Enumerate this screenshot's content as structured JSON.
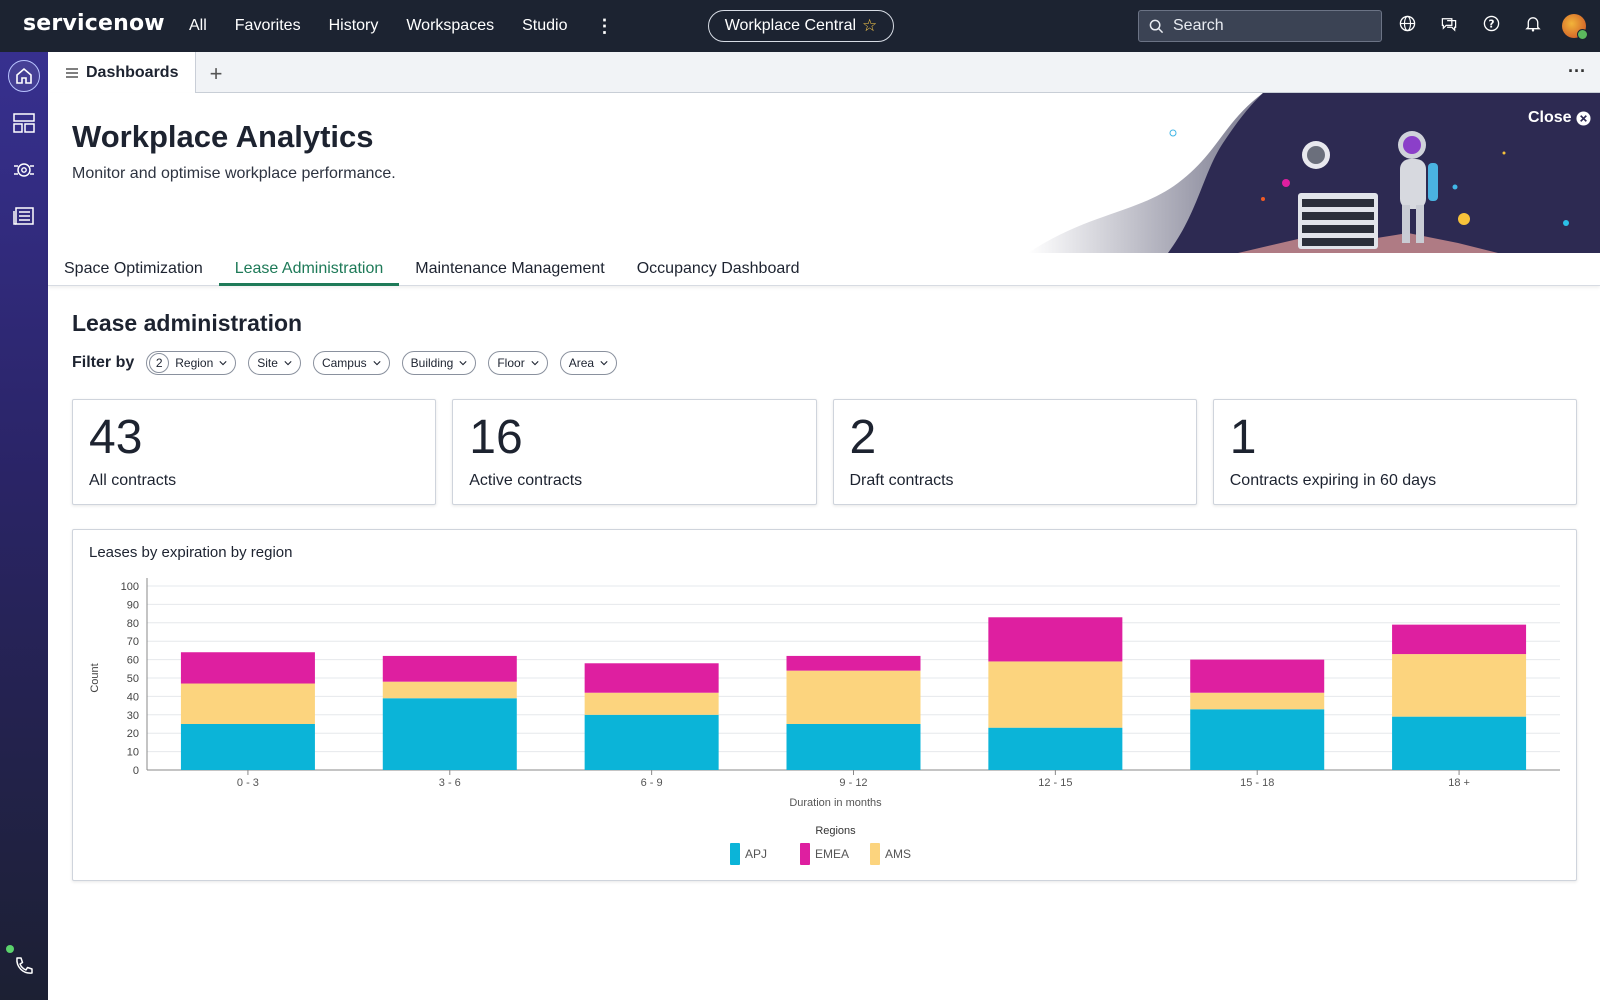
{
  "topbar": {
    "logo": "servicenow",
    "nav": [
      "All",
      "Favorites",
      "History",
      "Workspaces",
      "Studio"
    ],
    "workspace": "Workplace Central",
    "search_placeholder": "Search",
    "icons": [
      "globe-icon",
      "chat-icon",
      "help-icon",
      "bell-icon"
    ]
  },
  "rail": {
    "icons": [
      "home-icon",
      "dashboard-icon",
      "settings-group-icon",
      "list-icon",
      "phone-icon"
    ]
  },
  "tabstrip": {
    "active_tab": "Dashboards",
    "add": "+",
    "more": "···"
  },
  "hero": {
    "title": "Workplace Analytics",
    "subtitle": "Monitor and optimise workplace performance.",
    "close": "Close",
    "tabs": [
      "Space Optimization",
      "Lease Administration",
      "Maintenance Management",
      "Occupancy Dashboard"
    ],
    "selected_tab": "Lease Administration"
  },
  "section": {
    "title": "Lease administration",
    "filter_label": "Filter by",
    "filters": [
      {
        "label": "Region",
        "count": "2"
      },
      {
        "label": "Site"
      },
      {
        "label": "Campus"
      },
      {
        "label": "Building"
      },
      {
        "label": "Floor"
      },
      {
        "label": "Area"
      }
    ]
  },
  "cards": [
    {
      "value": "43",
      "label": "All contracts"
    },
    {
      "value": "16",
      "label": "Active contracts"
    },
    {
      "value": "2",
      "label": "Draft contracts"
    },
    {
      "value": "1",
      "label": "Contracts expiring in 60 days"
    }
  ],
  "colors": {
    "apj": "#0bb4d8",
    "emea": "#de1fa0",
    "ams": "#fcd47e",
    "accent": "#1e7a58"
  },
  "chart_data": {
    "type": "bar",
    "stacked": true,
    "title": "Leases by expiration by region",
    "xlabel": "Duration in months",
    "ylabel": "Count",
    "ylim": [
      0,
      100
    ],
    "yticks": [
      0,
      10,
      20,
      30,
      40,
      50,
      60,
      70,
      80,
      90,
      100
    ],
    "categories": [
      "0 - 3",
      "3 - 6",
      "6 - 9",
      "9 - 12",
      "12 - 15",
      "15 - 18",
      "18 +"
    ],
    "legend_title": "Regions",
    "series": [
      {
        "name": "APJ",
        "color": "#0bb4d8",
        "values": [
          25,
          39,
          30,
          25,
          23,
          33,
          29
        ]
      },
      {
        "name": "AMS",
        "color": "#fcd47e",
        "values": [
          22,
          9,
          12,
          29,
          36,
          9,
          34
        ]
      },
      {
        "name": "EMEA",
        "color": "#de1fa0",
        "values": [
          17,
          14,
          16,
          8,
          24,
          18,
          16
        ]
      }
    ],
    "legend_order": [
      "APJ",
      "EMEA",
      "AMS"
    ]
  }
}
